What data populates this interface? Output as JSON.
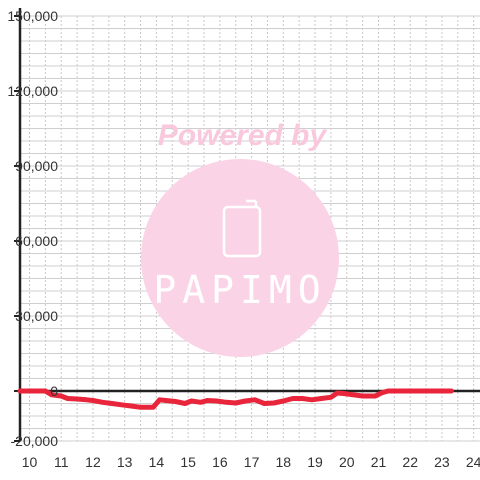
{
  "chart_data": {
    "type": "line",
    "xlabel": "",
    "ylabel": "",
    "xlim": [
      9.7,
      24.2
    ],
    "ylim": [
      -20000,
      150000
    ],
    "x_ticks": [
      10,
      11,
      12,
      13,
      14,
      15,
      16,
      17,
      18,
      19,
      20,
      21,
      22,
      23,
      24
    ],
    "x_tick_labels": [
      "10",
      "11",
      "12",
      "13",
      "14",
      "15",
      "16",
      "17",
      "18",
      "19",
      "20",
      "21",
      "22",
      "23",
      "24"
    ],
    "y_ticks": [
      -20000,
      0,
      30000,
      60000,
      90000,
      120000,
      150000
    ],
    "y_tick_labels": [
      "-20,000",
      "0",
      "30,000",
      "60,000",
      "90,000",
      "120,000",
      "150,000"
    ],
    "grid": true,
    "line_color": "#e8253b",
    "series": [
      {
        "x": [
          9.7,
          10.0,
          10.5,
          10.7,
          11.0,
          11.2,
          11.5,
          11.8,
          12.0,
          12.3,
          12.6,
          12.9,
          13.2,
          13.5,
          13.9,
          14.1,
          14.3,
          14.6,
          14.9,
          15.1,
          15.4,
          15.6,
          15.9,
          16.2,
          16.5,
          16.8,
          17.1,
          17.4,
          17.7,
          18.0,
          18.3,
          18.6,
          18.9,
          19.2,
          19.5,
          19.7,
          19.9,
          20.2,
          20.5,
          20.9,
          21.1,
          21.3,
          21.7,
          22.0,
          22.5,
          23.0,
          23.3
        ],
        "y": [
          0,
          0,
          0,
          -1500,
          -2000,
          -3000,
          -3200,
          -3500,
          -3800,
          -4500,
          -5000,
          -5500,
          -6000,
          -6500,
          -6500,
          -3500,
          -3800,
          -4200,
          -5000,
          -4000,
          -4500,
          -3800,
          -4000,
          -4500,
          -4800,
          -4000,
          -3500,
          -5000,
          -4800,
          -4000,
          -3000,
          -3000,
          -3500,
          -3000,
          -2500,
          -800,
          -1000,
          -1500,
          -2000,
          -2000,
          -700,
          0,
          0,
          0,
          0,
          0,
          0
        ]
      }
    ]
  },
  "watermark": {
    "line1": "Powered by",
    "logo_text": "PAPIMO",
    "color": "#fbd3e6",
    "text_color": "#f9c8dd"
  }
}
